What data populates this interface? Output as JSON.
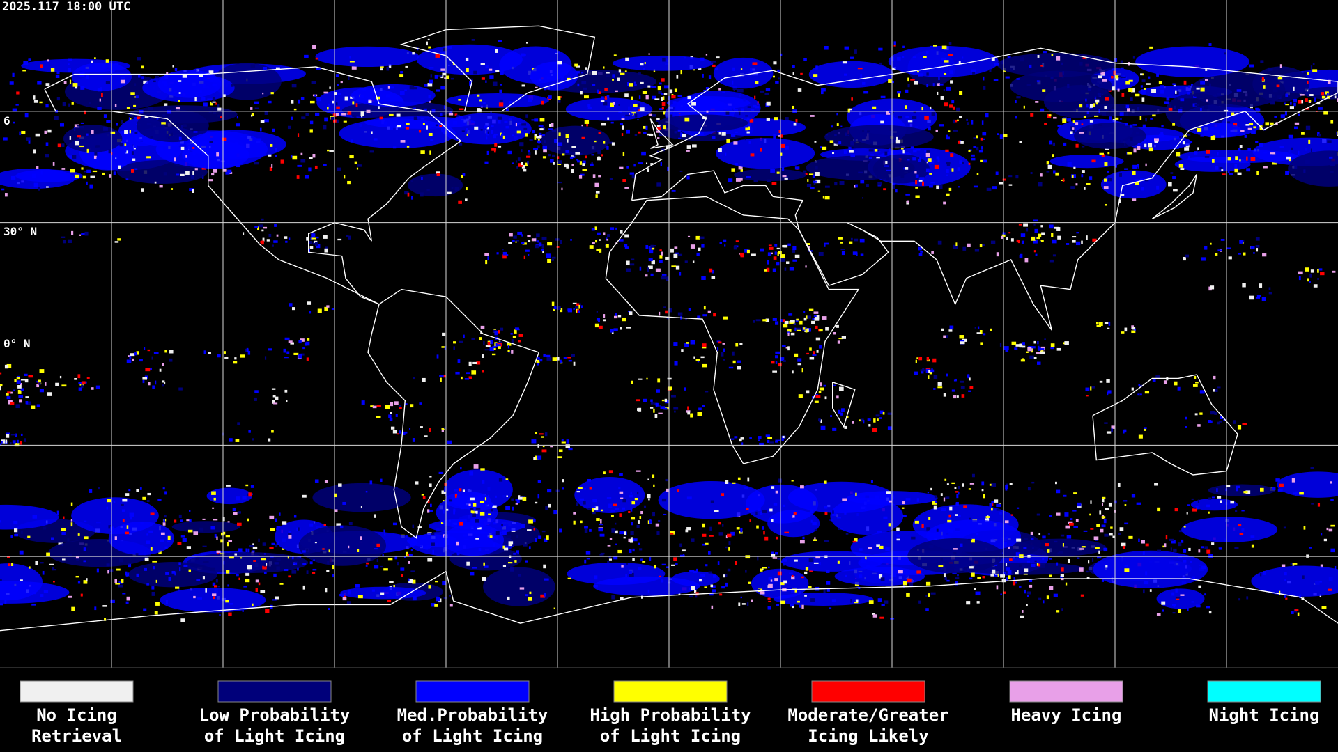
{
  "timestamp": "2025.117 18:00 UTC",
  "lat_labels": [
    "6",
    "30° N",
    "0° N"
  ],
  "legend": [
    {
      "color": "#f0f0f0",
      "lines": [
        "No Icing",
        "Retrieval"
      ]
    },
    {
      "color": "#00007a",
      "lines": [
        "Low Probability",
        "of Light Icing"
      ]
    },
    {
      "color": "#0000ff",
      "lines": [
        "Med.Probability",
        "of Light Icing"
      ]
    },
    {
      "color": "#ffff00",
      "lines": [
        "High Probability",
        "of Light Icing"
      ]
    },
    {
      "color": "#ff0000",
      "lines": [
        "Moderate/Greater",
        "Icing Likely"
      ]
    },
    {
      "color": "#e8a0e8",
      "lines": [
        "Heavy Icing"
      ]
    },
    {
      "color": "#00ffff",
      "lines": [
        "Night Icing"
      ]
    }
  ]
}
